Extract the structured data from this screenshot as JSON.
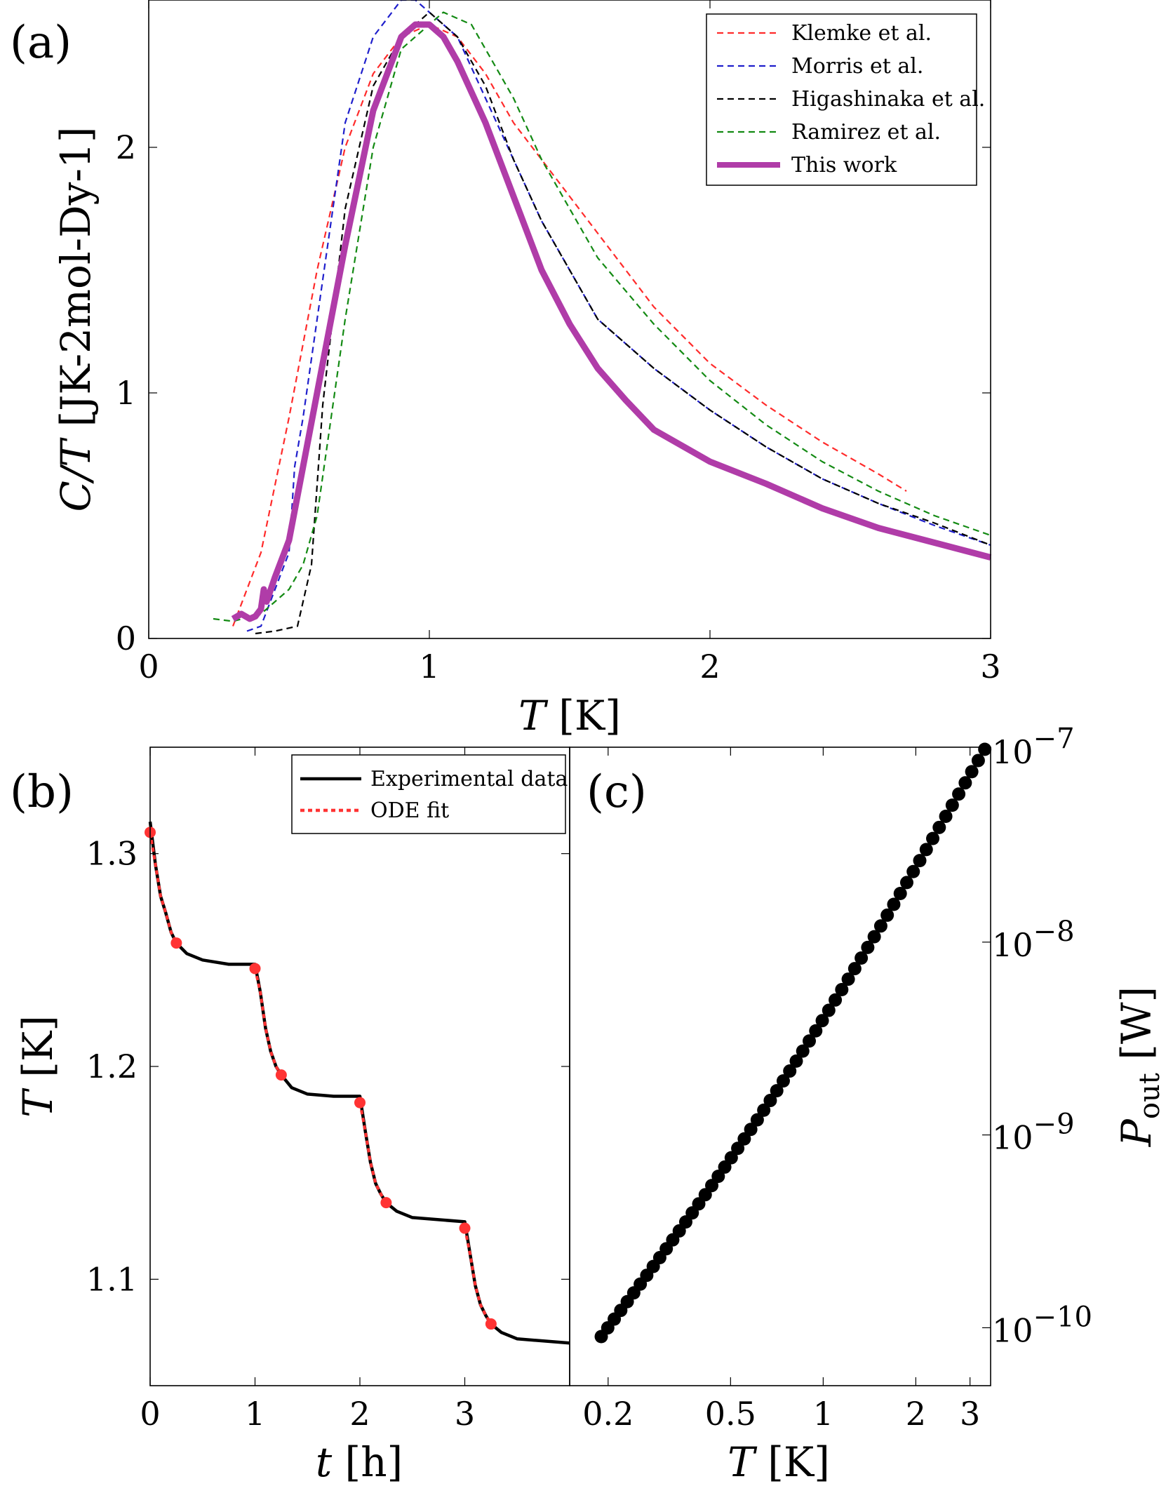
{
  "chart_data": [
    {
      "panel_label": "(a)",
      "type": "line",
      "xlabel_symbol": "T",
      "xlabel_unit": " [K]",
      "ylabel_symbol": "C/T",
      "ylabel_unit": " [JK-2mol-Dy-1]",
      "xlim": [
        0,
        3
      ],
      "ylim": [
        0,
        2.6
      ],
      "xticks": [
        "0",
        "1",
        "2",
        "3"
      ],
      "yticks": [
        "0",
        "1",
        "2"
      ],
      "legend_position": "top-right",
      "series": [
        {
          "name": "Klemke et al.",
          "color": "#ff2b2b",
          "style": "dashed",
          "x": [
            0.3,
            0.4,
            0.5,
            0.6,
            0.7,
            0.8,
            0.9,
            1.0,
            1.1,
            1.2,
            1.3,
            1.4,
            1.5,
            1.6,
            1.8,
            2.0,
            2.2,
            2.4,
            2.6,
            2.7
          ],
          "y": [
            0.05,
            0.35,
            0.9,
            1.5,
            2.0,
            2.3,
            2.45,
            2.5,
            2.45,
            2.3,
            2.1,
            1.95,
            1.8,
            1.65,
            1.35,
            1.12,
            0.95,
            0.8,
            0.67,
            0.6
          ]
        },
        {
          "name": "Morris et al.",
          "color": "#1f1fcc",
          "style": "dashed",
          "x": [
            0.35,
            0.4,
            0.45,
            0.5,
            0.52,
            0.55,
            0.6,
            0.65,
            0.7,
            0.8,
            0.9,
            0.95,
            1.0,
            1.1,
            1.2,
            1.3,
            1.4,
            1.6,
            1.8,
            2.0,
            2.2,
            2.4,
            2.6,
            2.8,
            3.0
          ],
          "y": [
            0.03,
            0.05,
            0.2,
            0.35,
            0.7,
            0.9,
            1.3,
            1.7,
            2.1,
            2.45,
            2.6,
            2.6,
            2.55,
            2.45,
            2.2,
            1.95,
            1.7,
            1.3,
            1.1,
            0.93,
            0.78,
            0.65,
            0.55,
            0.46,
            0.38
          ]
        },
        {
          "name": "Higashinaka et al.",
          "color": "#000000",
          "style": "dashed",
          "x": [
            0.38,
            0.45,
            0.53,
            0.57,
            0.58,
            0.62,
            0.7,
            0.8,
            0.9,
            1.0,
            1.1,
            1.2,
            1.3,
            1.4,
            1.6,
            1.8,
            2.0,
            2.2,
            2.4,
            2.6,
            2.8,
            3.0
          ],
          "y": [
            0.02,
            0.03,
            0.05,
            0.25,
            0.3,
            0.95,
            1.75,
            2.25,
            2.45,
            2.55,
            2.45,
            2.25,
            1.95,
            1.7,
            1.3,
            1.1,
            0.93,
            0.78,
            0.65,
            0.55,
            0.47,
            0.38
          ]
        },
        {
          "name": "Ramirez et al.",
          "color": "#138a13",
          "style": "dashed",
          "x": [
            0.23,
            0.3,
            0.4,
            0.5,
            0.55,
            0.6,
            0.7,
            0.8,
            0.9,
            1.0,
            1.05,
            1.15,
            1.3,
            1.4,
            1.6,
            1.8,
            2.0,
            2.2,
            2.4,
            2.6,
            2.8,
            3.0
          ],
          "y": [
            0.08,
            0.07,
            0.1,
            0.2,
            0.3,
            0.5,
            1.3,
            2.0,
            2.4,
            2.5,
            2.55,
            2.5,
            2.2,
            1.95,
            1.55,
            1.28,
            1.05,
            0.87,
            0.72,
            0.6,
            0.5,
            0.42
          ]
        },
        {
          "name": "This work",
          "color": "#b03ca8",
          "style": "solid",
          "x": [
            0.3,
            0.33,
            0.36,
            0.38,
            0.4,
            0.41,
            0.42,
            0.45,
            0.5,
            0.55,
            0.6,
            0.7,
            0.8,
            0.9,
            0.95,
            1.0,
            1.05,
            1.1,
            1.2,
            1.3,
            1.4,
            1.5,
            1.6,
            1.7,
            1.8,
            2.0,
            2.2,
            2.4,
            2.6,
            2.8,
            3.0
          ],
          "y": [
            0.08,
            0.1,
            0.08,
            0.09,
            0.12,
            0.2,
            0.15,
            0.25,
            0.4,
            0.7,
            1.0,
            1.6,
            2.15,
            2.45,
            2.5,
            2.5,
            2.45,
            2.35,
            2.1,
            1.8,
            1.5,
            1.28,
            1.1,
            0.97,
            0.85,
            0.72,
            0.63,
            0.53,
            0.45,
            0.39,
            0.33
          ]
        }
      ]
    },
    {
      "panel_label": "(b)",
      "type": "line",
      "xlabel_symbol": "t",
      "xlabel_unit": " [h]",
      "ylabel_symbol": "T",
      "ylabel_unit": " [K]",
      "xlim": [
        0,
        4
      ],
      "ylim": [
        1.05,
        1.35
      ],
      "xticks": [
        "0",
        "1",
        "2",
        "3"
      ],
      "yticks": [
        "1.1",
        "1.2",
        "1.3"
      ],
      "legend_position": "top-right",
      "series": [
        {
          "name": "Experimental data",
          "color": "#000000",
          "style": "solid",
          "x": [
            0.0,
            0.05,
            0.1,
            0.15,
            0.2,
            0.25,
            0.35,
            0.5,
            0.75,
            1.0,
            1.05,
            1.1,
            1.15,
            1.2,
            1.25,
            1.35,
            1.5,
            1.75,
            2.0,
            2.05,
            2.1,
            2.15,
            2.2,
            2.25,
            2.35,
            2.5,
            2.75,
            3.0,
            3.05,
            3.1,
            3.15,
            3.2,
            3.25,
            3.35,
            3.5,
            3.75,
            4.0
          ],
          "y": [
            1.315,
            1.295,
            1.28,
            1.272,
            1.263,
            1.258,
            1.253,
            1.25,
            1.248,
            1.248,
            1.235,
            1.218,
            1.207,
            1.2,
            1.196,
            1.19,
            1.187,
            1.186,
            1.186,
            1.17,
            1.155,
            1.145,
            1.14,
            1.136,
            1.132,
            1.129,
            1.128,
            1.127,
            1.112,
            1.097,
            1.088,
            1.083,
            1.079,
            1.075,
            1.072,
            1.071,
            1.07
          ]
        },
        {
          "name": "ODE fit",
          "color": "#ff3333",
          "style": "dotted",
          "x": [
            0.0,
            0.05,
            0.1,
            0.15,
            0.2,
            0.25,
            1.0,
            1.05,
            1.1,
            1.15,
            1.2,
            1.25,
            2.0,
            2.05,
            2.1,
            2.15,
            2.2,
            2.25,
            3.0,
            3.05,
            3.1,
            3.15,
            3.2,
            3.25
          ],
          "y": [
            1.31,
            1.295,
            1.28,
            1.272,
            1.263,
            1.258,
            1.246,
            1.235,
            1.218,
            1.207,
            1.2,
            1.196,
            1.183,
            1.17,
            1.155,
            1.145,
            1.14,
            1.136,
            1.124,
            1.112,
            1.097,
            1.088,
            1.083,
            1.079
          ],
          "segments": [
            [
              0,
              6
            ],
            [
              6,
              12
            ],
            [
              12,
              18
            ],
            [
              18,
              24
            ]
          ]
        }
      ],
      "markers": {
        "color": "#ff3333",
        "x": [
          0.0,
          0.25,
          1.0,
          1.25,
          2.0,
          2.25,
          3.0,
          3.25
        ],
        "y": [
          1.31,
          1.258,
          1.246,
          1.196,
          1.183,
          1.136,
          1.124,
          1.079
        ]
      }
    },
    {
      "panel_label": "(c)",
      "type": "scatter",
      "xlabel_symbol": "T",
      "xlabel_unit": " [K]",
      "ylabel_symbol": "P",
      "ylabel_subscript": "out",
      "ylabel_unit": " [W]",
      "xscale": "log",
      "yscale": "log",
      "xlim": [
        0.15,
        3.5
      ],
      "ylim": [
        7e-11,
        1e-07
      ],
      "xticks": [
        {
          "value": 0.2,
          "label": "0.2"
        },
        {
          "value": 0.5,
          "label": "0.5"
        },
        {
          "value": 1,
          "label": "1"
        },
        {
          "value": 2,
          "label": "2"
        },
        {
          "value": 3,
          "label": "3"
        }
      ],
      "yticks": [
        {
          "value": 1e-07,
          "base": "10",
          "exp": "−7"
        },
        {
          "value": 1e-08,
          "base": "10",
          "exp": "−8"
        },
        {
          "value": 1e-09,
          "base": "10",
          "exp": "−9"
        },
        {
          "value": 1e-10,
          "base": "10",
          "exp": "−10"
        }
      ],
      "y_axis_side": "right",
      "marker_color": "#000000",
      "points": {
        "T_min": 0.19,
        "T_max": 3.35,
        "count": 60,
        "P_at_T_min": 9e-11,
        "P_at_T_max": 1e-07
      }
    }
  ]
}
